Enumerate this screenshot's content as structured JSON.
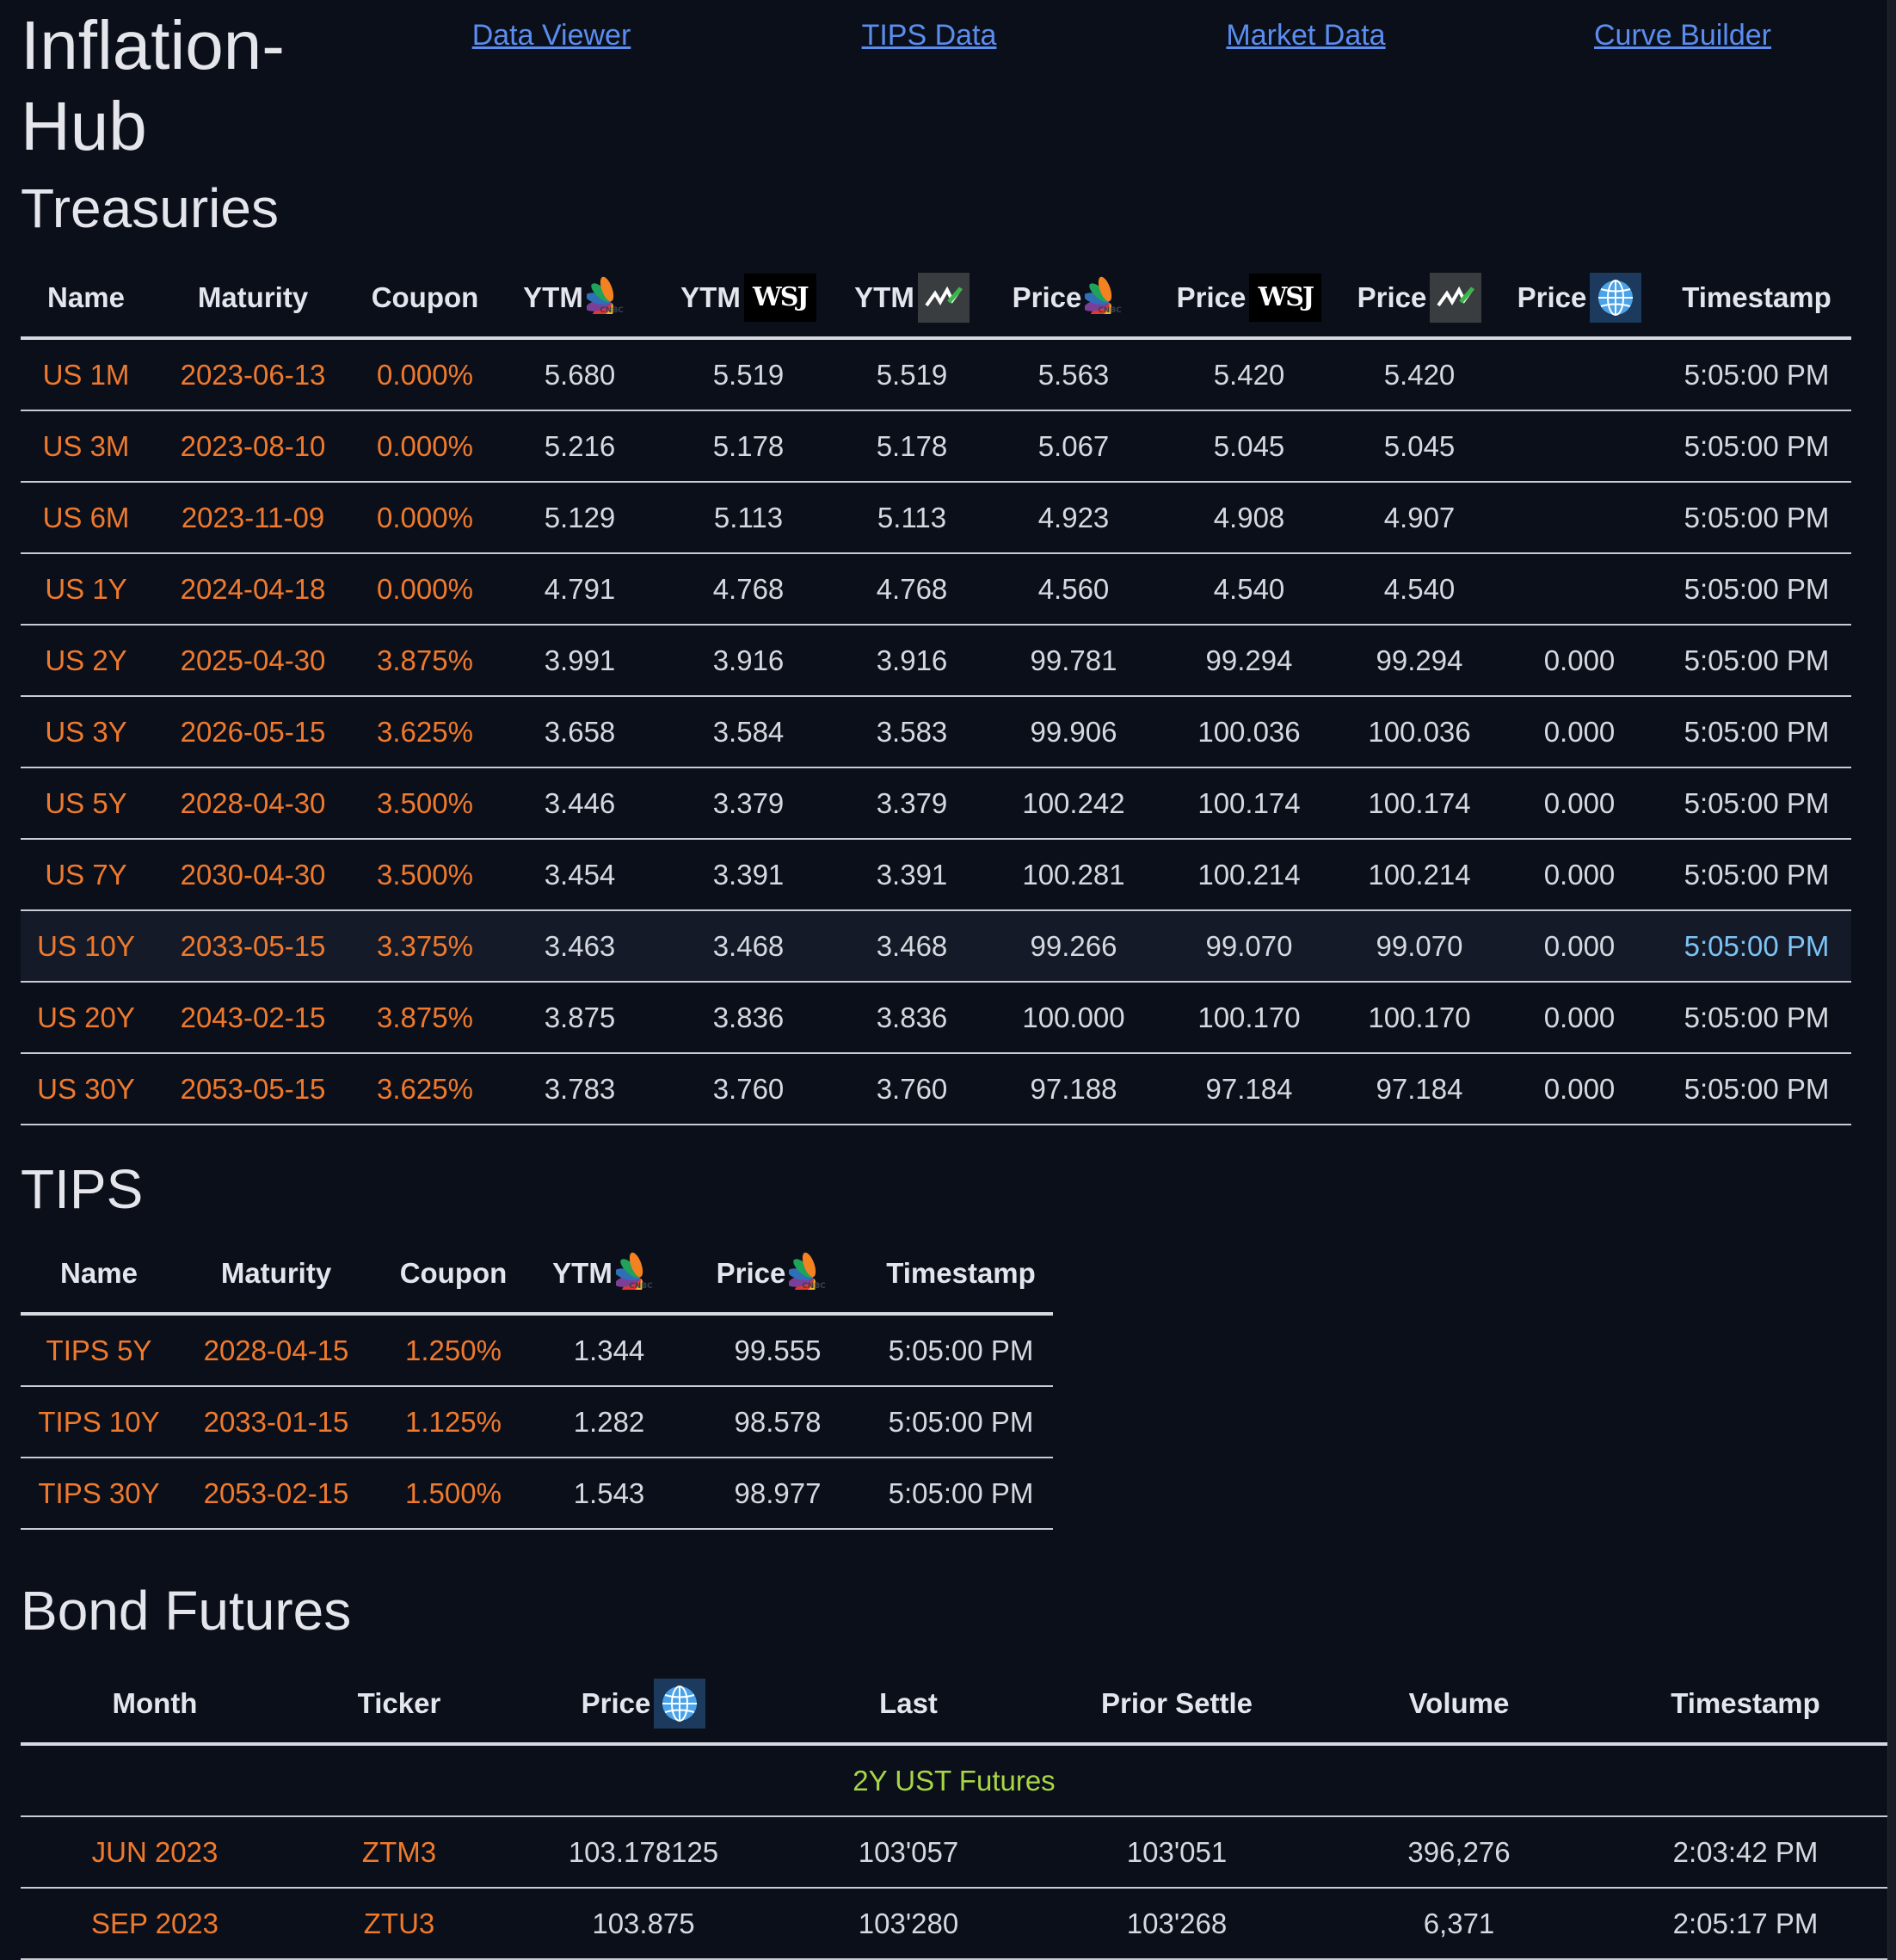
{
  "brand": {
    "line1": "Inflation-",
    "line2": "Hub"
  },
  "nav": {
    "data_viewer": "Data Viewer",
    "tips_data": "TIPS Data",
    "market_data": "Market Data",
    "curve_builder": "Curve Builder"
  },
  "colors": {
    "background": "#0b0f1a",
    "accent_orange": "#ef7a2d",
    "link_blue": "#5b8def",
    "highlight_blue": "#7cc3f6",
    "group_green": "#a9d646"
  },
  "treasuries": {
    "title": "Treasuries",
    "headers": {
      "name": "Name",
      "maturity": "Maturity",
      "coupon": "Coupon",
      "ytm": "YTM",
      "price": "Price",
      "timestamp": "Timestamp"
    },
    "source_icons": [
      "cnbc-icon",
      "wsj-icon",
      "marketwatch-icon",
      "globe-icon"
    ],
    "wsj_label": "WSJ",
    "rows": [
      {
        "name": "US 1M",
        "maturity": "2023-06-13",
        "coupon": "0.000%",
        "ytm_cnbc": "5.680",
        "ytm_wsj": "5.519",
        "ytm_mw": "5.519",
        "price_cnbc": "5.563",
        "price_wsj": "5.420",
        "price_mw": "5.420",
        "price_globe": "",
        "timestamp": "5:05:00 PM"
      },
      {
        "name": "US 3M",
        "maturity": "2023-08-10",
        "coupon": "0.000%",
        "ytm_cnbc": "5.216",
        "ytm_wsj": "5.178",
        "ytm_mw": "5.178",
        "price_cnbc": "5.067",
        "price_wsj": "5.045",
        "price_mw": "5.045",
        "price_globe": "",
        "timestamp": "5:05:00 PM"
      },
      {
        "name": "US 6M",
        "maturity": "2023-11-09",
        "coupon": "0.000%",
        "ytm_cnbc": "5.129",
        "ytm_wsj": "5.113",
        "ytm_mw": "5.113",
        "price_cnbc": "4.923",
        "price_wsj": "4.908",
        "price_mw": "4.907",
        "price_globe": "",
        "timestamp": "5:05:00 PM"
      },
      {
        "name": "US 1Y",
        "maturity": "2024-04-18",
        "coupon": "0.000%",
        "ytm_cnbc": "4.791",
        "ytm_wsj": "4.768",
        "ytm_mw": "4.768",
        "price_cnbc": "4.560",
        "price_wsj": "4.540",
        "price_mw": "4.540",
        "price_globe": "",
        "timestamp": "5:05:00 PM"
      },
      {
        "name": "US 2Y",
        "maturity": "2025-04-30",
        "coupon": "3.875%",
        "ytm_cnbc": "3.991",
        "ytm_wsj": "3.916",
        "ytm_mw": "3.916",
        "price_cnbc": "99.781",
        "price_wsj": "99.294",
        "price_mw": "99.294",
        "price_globe": "0.000",
        "timestamp": "5:05:00 PM"
      },
      {
        "name": "US 3Y",
        "maturity": "2026-05-15",
        "coupon": "3.625%",
        "ytm_cnbc": "3.658",
        "ytm_wsj": "3.584",
        "ytm_mw": "3.583",
        "price_cnbc": "99.906",
        "price_wsj": "100.036",
        "price_mw": "100.036",
        "price_globe": "0.000",
        "timestamp": "5:05:00 PM"
      },
      {
        "name": "US 5Y",
        "maturity": "2028-04-30",
        "coupon": "3.500%",
        "ytm_cnbc": "3.446",
        "ytm_wsj": "3.379",
        "ytm_mw": "3.379",
        "price_cnbc": "100.242",
        "price_wsj": "100.174",
        "price_mw": "100.174",
        "price_globe": "0.000",
        "timestamp": "5:05:00 PM"
      },
      {
        "name": "US 7Y",
        "maturity": "2030-04-30",
        "coupon": "3.500%",
        "ytm_cnbc": "3.454",
        "ytm_wsj": "3.391",
        "ytm_mw": "3.391",
        "price_cnbc": "100.281",
        "price_wsj": "100.214",
        "price_mw": "100.214",
        "price_globe": "0.000",
        "timestamp": "5:05:00 PM"
      },
      {
        "name": "US 10Y",
        "maturity": "2033-05-15",
        "coupon": "3.375%",
        "ytm_cnbc": "3.463",
        "ytm_wsj": "3.468",
        "ytm_mw": "3.468",
        "price_cnbc": "99.266",
        "price_wsj": "99.070",
        "price_mw": "99.070",
        "price_globe": "0.000",
        "timestamp": "5:05:00 PM",
        "highlighted": true
      },
      {
        "name": "US 20Y",
        "maturity": "2043-02-15",
        "coupon": "3.875%",
        "ytm_cnbc": "3.875",
        "ytm_wsj": "3.836",
        "ytm_mw": "3.836",
        "price_cnbc": "100.000",
        "price_wsj": "100.170",
        "price_mw": "100.170",
        "price_globe": "0.000",
        "timestamp": "5:05:00 PM"
      },
      {
        "name": "US 30Y",
        "maturity": "2053-05-15",
        "coupon": "3.625%",
        "ytm_cnbc": "3.783",
        "ytm_wsj": "3.760",
        "ytm_mw": "3.760",
        "price_cnbc": "97.188",
        "price_wsj": "97.184",
        "price_mw": "97.184",
        "price_globe": "0.000",
        "timestamp": "5:05:00 PM"
      }
    ]
  },
  "tips": {
    "title": "TIPS",
    "headers": {
      "name": "Name",
      "maturity": "Maturity",
      "coupon": "Coupon",
      "ytm": "YTM",
      "price": "Price",
      "timestamp": "Timestamp"
    },
    "rows": [
      {
        "name": "TIPS 5Y",
        "maturity": "2028-04-15",
        "coupon": "1.250%",
        "ytm": "1.344",
        "price": "99.555",
        "timestamp": "5:05:00 PM"
      },
      {
        "name": "TIPS 10Y",
        "maturity": "2033-01-15",
        "coupon": "1.125%",
        "ytm": "1.282",
        "price": "98.578",
        "timestamp": "5:05:00 PM"
      },
      {
        "name": "TIPS 30Y",
        "maturity": "2053-02-15",
        "coupon": "1.500%",
        "ytm": "1.543",
        "price": "98.977",
        "timestamp": "5:05:00 PM"
      }
    ]
  },
  "futures": {
    "title": "Bond Futures",
    "headers": {
      "month": "Month",
      "ticker": "Ticker",
      "price": "Price",
      "last": "Last",
      "prior_settle": "Prior Settle",
      "volume": "Volume",
      "timestamp": "Timestamp"
    },
    "group_label": "2Y UST Futures",
    "rows": [
      {
        "month": "JUN 2023",
        "ticker": "ZTM3",
        "price": "103.178125",
        "last": "103'057",
        "prior_settle": "103'051",
        "volume": "396,276",
        "timestamp": "2:03:42 PM"
      },
      {
        "month": "SEP 2023",
        "ticker": "ZTU3",
        "price": "103.875",
        "last": "103'280",
        "prior_settle": "103'268",
        "volume": "6,371",
        "timestamp": "2:05:17 PM"
      }
    ]
  }
}
